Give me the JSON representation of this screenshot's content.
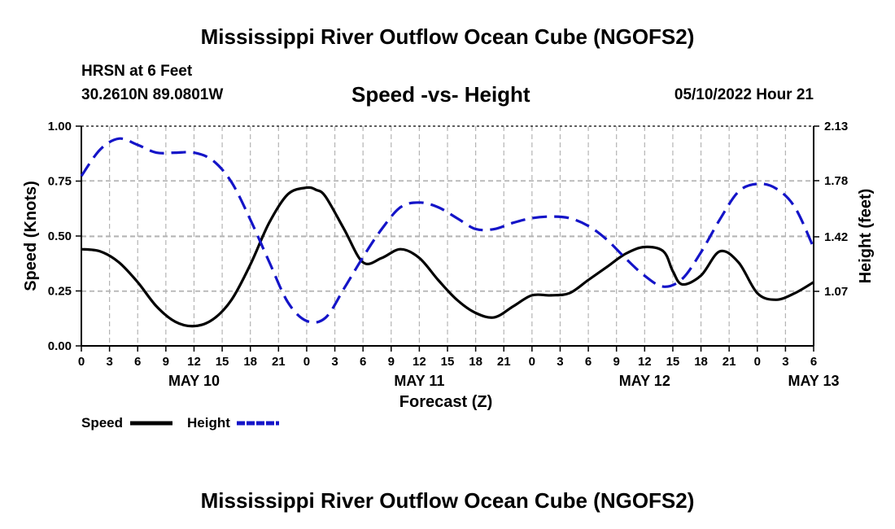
{
  "header": {
    "title": "Mississippi River Outflow Ocean Cube (NGOFS2)",
    "station": "HRSN at 6 Feet",
    "coordinates": "30.2610N  89.0801W",
    "subtitle": "Speed -vs- Height",
    "datetime": "05/10/2022 Hour 21"
  },
  "footer": {
    "title": "Mississippi River Outflow Ocean Cube (NGOFS2)"
  },
  "colors": {
    "speed": "#000000",
    "height": "#1414c8",
    "grid": "#b4b4b4"
  },
  "chart_data": {
    "type": "line",
    "title": "Speed -vs- Height",
    "xlabel": "Forecast (Z)",
    "ylabel": "Speed (Knots)",
    "y2label": "Height (feet)",
    "xlim": [
      0,
      78
    ],
    "ylim": [
      0,
      1
    ],
    "y2lim": [
      0.72,
      2.13
    ],
    "yticks": [
      0,
      0.25,
      0.5,
      0.75,
      1.0
    ],
    "yticklabels": [
      "0.00",
      "0.25",
      "0.50",
      "0.75",
      "1.00"
    ],
    "y2ticks": [
      1.07,
      1.42,
      1.78,
      2.13
    ],
    "y2ticklabels": [
      "1.07",
      "1.42",
      "1.78",
      "2.13"
    ],
    "xticks": [
      0,
      3,
      6,
      9,
      12,
      15,
      18,
      21,
      24,
      27,
      30,
      33,
      36,
      39,
      42,
      45,
      48,
      51,
      54,
      57,
      60,
      63,
      66,
      69,
      72,
      75,
      78
    ],
    "xticklabels": [
      "0",
      "3",
      "6",
      "9",
      "12",
      "15",
      "18",
      "21",
      "0",
      "3",
      "6",
      "9",
      "12",
      "15",
      "18",
      "21",
      "0",
      "3",
      "6",
      "9",
      "12",
      "15",
      "18",
      "21",
      "0",
      "3",
      "6"
    ],
    "day_labels": [
      {
        "hour": 12,
        "label": "MAY 10"
      },
      {
        "hour": 36,
        "label": "MAY 11"
      },
      {
        "hour": 60,
        "label": "MAY 12"
      },
      {
        "hour": 78,
        "label": "MAY 13"
      }
    ],
    "legend": [
      {
        "name": "Speed",
        "color": "#000000",
        "dash": "solid"
      },
      {
        "name": "Height",
        "color": "#1414c8",
        "dash": "dashed"
      }
    ],
    "series": [
      {
        "name": "Speed",
        "axis": "left",
        "x": [
          0,
          2,
          4,
          6,
          8,
          10,
          12,
          14,
          16,
          18,
          20,
          22,
          24,
          25,
          26,
          28,
          30,
          32,
          34,
          36,
          38,
          40,
          42,
          44,
          46,
          48,
          50,
          52,
          54,
          56,
          58,
          60,
          62,
          63,
          64,
          66,
          68,
          70,
          72,
          74,
          76,
          78
        ],
        "y": [
          0.44,
          0.43,
          0.38,
          0.29,
          0.18,
          0.11,
          0.09,
          0.12,
          0.21,
          0.37,
          0.56,
          0.69,
          0.72,
          0.71,
          0.68,
          0.53,
          0.38,
          0.4,
          0.44,
          0.4,
          0.3,
          0.21,
          0.15,
          0.13,
          0.18,
          0.23,
          0.23,
          0.24,
          0.3,
          0.36,
          0.42,
          0.45,
          0.43,
          0.34,
          0.28,
          0.32,
          0.43,
          0.38,
          0.24,
          0.21,
          0.24,
          0.29
        ]
      },
      {
        "name": "Height",
        "axis": "right",
        "x": [
          0,
          2,
          4,
          6,
          8,
          10,
          12,
          14,
          16,
          18,
          20,
          22,
          24,
          26,
          28,
          30,
          32,
          34,
          36,
          38,
          40,
          42,
          44,
          46,
          48,
          50,
          52,
          54,
          56,
          58,
          60,
          62,
          64,
          66,
          68,
          70,
          72,
          74,
          76,
          78
        ],
        "y": [
          1.81,
          1.98,
          2.05,
          2.01,
          1.96,
          1.96,
          1.96,
          1.91,
          1.77,
          1.53,
          1.26,
          1.0,
          0.88,
          0.9,
          1.09,
          1.29,
          1.47,
          1.61,
          1.64,
          1.61,
          1.54,
          1.47,
          1.47,
          1.51,
          1.54,
          1.55,
          1.54,
          1.49,
          1.4,
          1.28,
          1.17,
          1.1,
          1.15,
          1.32,
          1.53,
          1.71,
          1.76,
          1.73,
          1.61,
          1.35
        ]
      }
    ]
  }
}
